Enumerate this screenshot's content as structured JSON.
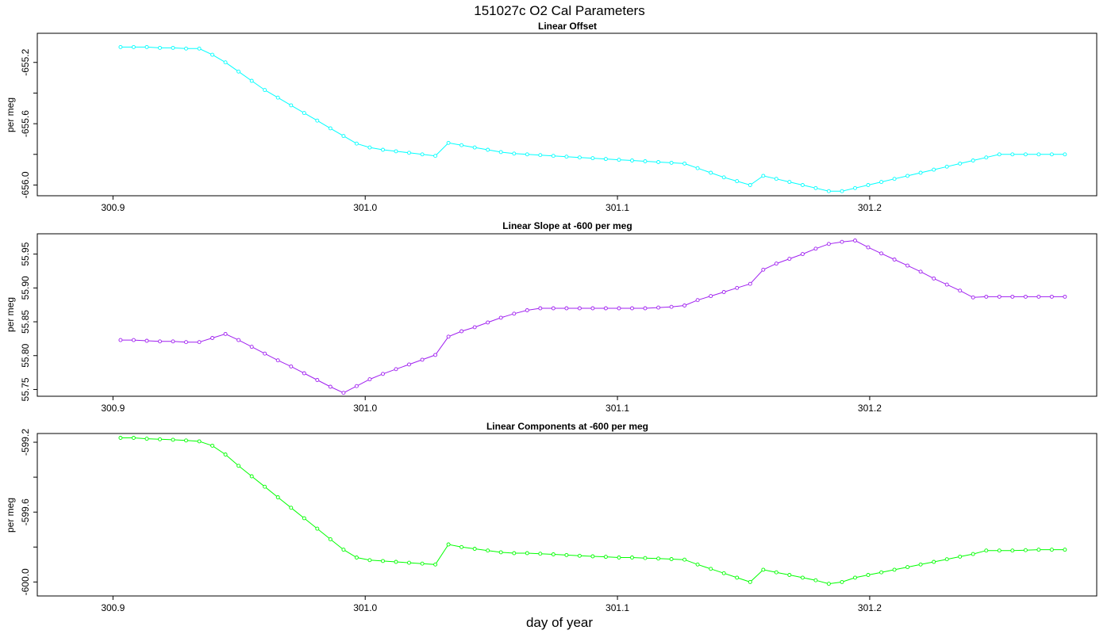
{
  "title": "151027c   O2 Cal Parameters",
  "xlabel": "day of year",
  "chart_data": [
    {
      "type": "line",
      "title": "Linear Offset",
      "ylabel": "per meg",
      "color": "#00ffff",
      "xlim": [
        300.87,
        301.29
      ],
      "ylim": [
        -656.07,
        -655.01
      ],
      "x_ticks": [
        "300.9",
        "301.0",
        "301.1",
        "301.2"
      ],
      "y_ticks": [
        "-656.0",
        "-655.6",
        "-655.2"
      ],
      "y_minor_ticks": [
        -655.8,
        -655.4,
        -655.0
      ],
      "x": [
        300.903,
        300.9082,
        300.9134,
        300.9186,
        300.9238,
        300.929,
        300.9342,
        300.9394,
        300.9446,
        300.9498,
        300.955,
        300.9602,
        300.9654,
        300.9706,
        300.9758,
        300.981,
        300.9862,
        300.9914,
        300.9966,
        301.0018,
        301.007,
        301.0122,
        301.0174,
        301.0226,
        301.0278,
        301.033,
        301.0382,
        301.0434,
        301.0486,
        301.0538,
        301.059,
        301.0642,
        301.0694,
        301.0746,
        301.0798,
        301.085,
        301.0902,
        301.0954,
        301.1006,
        301.1058,
        301.111,
        301.1162,
        301.1214,
        301.1266,
        301.1318,
        301.137,
        301.1422,
        301.1474,
        301.1526,
        301.1578,
        301.163,
        301.1682,
        301.1734,
        301.1786,
        301.1838,
        301.189,
        301.1942,
        301.1994,
        301.2046,
        301.2098,
        301.215,
        301.2202,
        301.2254,
        301.2306,
        301.2358,
        301.241,
        301.2462,
        301.2514,
        301.2566,
        301.2618,
        301.267,
        301.2722,
        301.2774
      ],
      "y": [
        -655.1,
        -655.1,
        -655.1,
        -655.105,
        -655.105,
        -655.11,
        -655.11,
        -655.15,
        -655.2,
        -655.26,
        -655.32,
        -655.38,
        -655.43,
        -655.48,
        -655.53,
        -655.58,
        -655.63,
        -655.68,
        -655.73,
        -655.755,
        -655.77,
        -655.78,
        -655.79,
        -655.8,
        -655.81,
        -655.725,
        -655.74,
        -655.755,
        -655.77,
        -655.785,
        -655.795,
        -655.8,
        -655.805,
        -655.81,
        -655.815,
        -655.82,
        -655.825,
        -655.83,
        -655.835,
        -655.84,
        -655.845,
        -655.85,
        -655.855,
        -655.86,
        -655.89,
        -655.92,
        -655.95,
        -655.975,
        -656.0,
        -655.94,
        -655.96,
        -655.98,
        -656.0,
        -656.02,
        -656.04,
        -656.04,
        -656.02,
        -656.0,
        -655.98,
        -655.96,
        -655.94,
        -655.92,
        -655.9,
        -655.88,
        -655.86,
        -655.84,
        -655.82,
        -655.8,
        -655.8,
        -655.8,
        -655.8,
        -655.8,
        -655.8
      ]
    },
    {
      "type": "line",
      "title": "Linear Slope at -600 per meg",
      "ylabel": "per meg",
      "color": "#a020f0",
      "xlim": [
        300.87,
        301.29
      ],
      "ylim": [
        55.74,
        55.98
      ],
      "x_ticks": [
        "300.9",
        "301.0",
        "301.1",
        "301.2"
      ],
      "y_ticks": [
        "55.75",
        "55.80",
        "55.85",
        "55.90",
        "55.95"
      ],
      "y_minor_ticks": [],
      "x": [
        300.903,
        300.9082,
        300.9134,
        300.9186,
        300.9238,
        300.929,
        300.9342,
        300.9394,
        300.9446,
        300.9498,
        300.955,
        300.9602,
        300.9654,
        300.9706,
        300.9758,
        300.981,
        300.9862,
        300.9914,
        300.9966,
        301.0018,
        301.007,
        301.0122,
        301.0174,
        301.0226,
        301.0278,
        301.033,
        301.0382,
        301.0434,
        301.0486,
        301.0538,
        301.059,
        301.0642,
        301.0694,
        301.0746,
        301.0798,
        301.085,
        301.0902,
        301.0954,
        301.1006,
        301.1058,
        301.111,
        301.1162,
        301.1214,
        301.1266,
        301.1318,
        301.137,
        301.1422,
        301.1474,
        301.1526,
        301.1578,
        301.163,
        301.1682,
        301.1734,
        301.1786,
        301.1838,
        301.189,
        301.1942,
        301.1994,
        301.2046,
        301.2098,
        301.215,
        301.2202,
        301.2254,
        301.2306,
        301.2358,
        301.241,
        301.2462,
        301.2514,
        301.2566,
        301.2618,
        301.267,
        301.2722,
        301.2774
      ],
      "y": [
        55.823,
        55.823,
        55.822,
        55.821,
        55.821,
        55.82,
        55.82,
        55.826,
        55.832,
        55.823,
        55.813,
        55.803,
        55.793,
        55.784,
        55.774,
        55.764,
        55.754,
        55.745,
        55.755,
        55.765,
        55.773,
        55.78,
        55.787,
        55.794,
        55.801,
        55.828,
        55.836,
        55.842,
        55.849,
        55.856,
        55.862,
        55.867,
        55.87,
        55.87,
        55.87,
        55.87,
        55.87,
        55.87,
        55.87,
        55.87,
        55.87,
        55.871,
        55.872,
        55.874,
        55.882,
        55.888,
        55.894,
        55.9,
        55.906,
        55.927,
        55.936,
        55.943,
        55.95,
        55.958,
        55.965,
        55.968,
        55.97,
        55.96,
        55.951,
        55.942,
        55.933,
        55.924,
        55.914,
        55.905,
        55.896,
        55.886,
        55.887,
        55.887,
        55.887,
        55.887,
        55.887,
        55.887,
        55.887
      ]
    },
    {
      "type": "line",
      "title": "Linear Components at -600 per meg",
      "ylabel": "per meg",
      "color": "#00ff00",
      "xlim": [
        300.87,
        301.29
      ],
      "ylim": [
        -600.08,
        -599.15
      ],
      "x_ticks": [
        "300.9",
        "301.0",
        "301.1",
        "301.2"
      ],
      "y_ticks": [
        "-600.0",
        "-599.6",
        "-599.2"
      ],
      "y_minor_ticks": [
        -599.8,
        -599.4
      ],
      "x": [
        300.903,
        300.9082,
        300.9134,
        300.9186,
        300.9238,
        300.929,
        300.9342,
        300.9394,
        300.9446,
        300.9498,
        300.955,
        300.9602,
        300.9654,
        300.9706,
        300.9758,
        300.981,
        300.9862,
        300.9914,
        300.9966,
        301.0018,
        301.007,
        301.0122,
        301.0174,
        301.0226,
        301.0278,
        301.033,
        301.0382,
        301.0434,
        301.0486,
        301.0538,
        301.059,
        301.0642,
        301.0694,
        301.0746,
        301.0798,
        301.085,
        301.0902,
        301.0954,
        301.1006,
        301.1058,
        301.111,
        301.1162,
        301.1214,
        301.1266,
        301.1318,
        301.137,
        301.1422,
        301.1474,
        301.1526,
        301.1578,
        301.163,
        301.1682,
        301.1734,
        301.1786,
        301.1838,
        301.189,
        301.1942,
        301.1994,
        301.2046,
        301.2098,
        301.215,
        301.2202,
        301.2254,
        301.2306,
        301.2358,
        301.241,
        301.2462,
        301.2514,
        301.2566,
        301.2618,
        301.267,
        301.2722,
        301.2774
      ],
      "y": [
        -599.175,
        -599.175,
        -599.18,
        -599.183,
        -599.186,
        -599.19,
        -599.195,
        -599.22,
        -599.27,
        -599.335,
        -599.395,
        -599.455,
        -599.515,
        -599.575,
        -599.635,
        -599.695,
        -599.755,
        -599.815,
        -599.86,
        -599.875,
        -599.88,
        -599.885,
        -599.89,
        -599.895,
        -599.9,
        -599.785,
        -599.8,
        -599.81,
        -599.82,
        -599.83,
        -599.835,
        -599.835,
        -599.838,
        -599.842,
        -599.846,
        -599.85,
        -599.853,
        -599.856,
        -599.86,
        -599.86,
        -599.863,
        -599.866,
        -599.869,
        -599.872,
        -599.9,
        -599.925,
        -599.95,
        -599.975,
        -600.0,
        -599.93,
        -599.945,
        -599.96,
        -599.975,
        -599.99,
        -600.01,
        -600.0,
        -599.975,
        -599.96,
        -599.945,
        -599.93,
        -599.915,
        -599.9,
        -599.885,
        -599.87,
        -599.855,
        -599.84,
        -599.82,
        -599.82,
        -599.82,
        -599.818,
        -599.815,
        -599.815,
        -599.815
      ]
    }
  ]
}
